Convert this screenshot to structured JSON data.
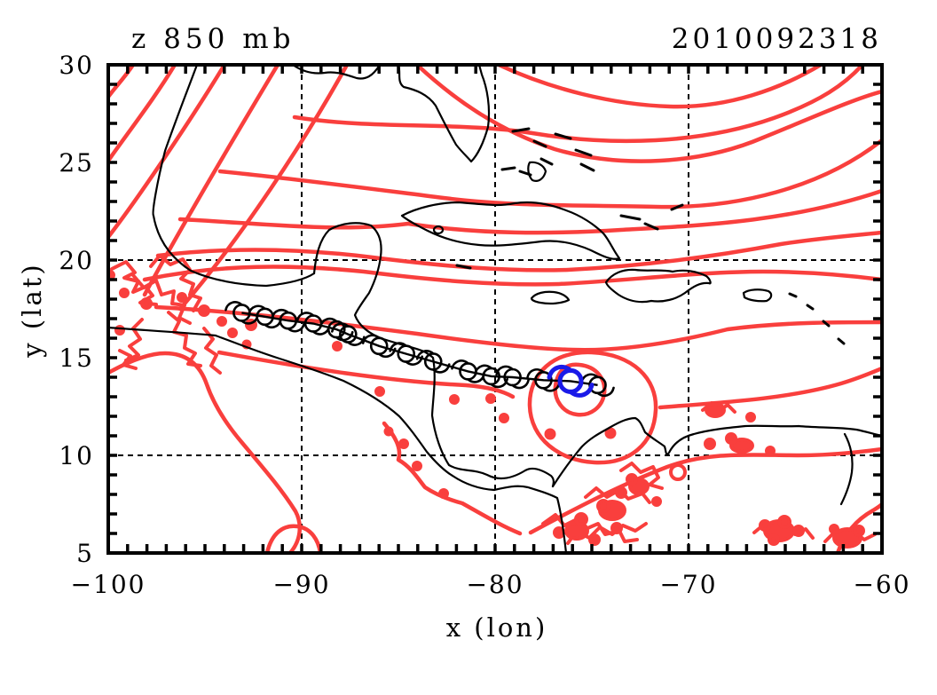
{
  "header": {
    "title": "z 850 mb",
    "timestamp": "2010092318"
  },
  "axes": {
    "x": {
      "label": "x (lon)",
      "min": -100,
      "max": -60,
      "major_ticks": [
        -100,
        -90,
        -80,
        -70,
        -60
      ],
      "minor_step": 1,
      "gridlines": [
        -90,
        -80,
        -70
      ]
    },
    "y": {
      "label": "y (lat)",
      "min": 5,
      "max": 30,
      "major_ticks": [
        30,
        25,
        20,
        15,
        10,
        5
      ],
      "minor_step": 1,
      "gridlines": [
        10,
        20
      ]
    }
  },
  "colors": {
    "contour_red": "#f93f3d",
    "storm_blue": "#1a1ae8",
    "coastline_black": "#000000",
    "background": "#ffffff"
  },
  "chart_data": {
    "type": "contour_map",
    "title": "z 850 mb",
    "timestamp": "2010092318",
    "field": "850 mb geopotential height contours (unlabeled) over Gulf of Mexico / Caribbean coastline basemap",
    "xlabel": "x (lon)",
    "ylabel": "y (lat)",
    "xlim": [
      -100,
      -60
    ],
    "ylim": [
      5,
      30
    ],
    "grid": "dashed graticule at lon -90,-80,-70 and lat 10,20",
    "contour_pattern": "tight NW-SE gradient over Gulf of Mexico, contours flattening eastward and rising toward NE corner; closed double low center around storm at (-76,13.8); terrain noise contours over Mexican/Guatemalan and Colombian/Venezuelan highlands",
    "storm_track": {
      "symbol": "tropical-storm-icon",
      "current": {
        "lon": -76.1,
        "lat": 13.8
      },
      "positions": [
        {
          "lon": -93.1,
          "lat": 17.3
        },
        {
          "lon": -91.9,
          "lat": 17.1
        },
        {
          "lon": -90.7,
          "lat": 16.9
        },
        {
          "lon": -89.4,
          "lat": 16.75
        },
        {
          "lon": -88.2,
          "lat": 16.45
        },
        {
          "lon": -87.6,
          "lat": 16.2
        },
        {
          "lon": -86.0,
          "lat": 15.6
        },
        {
          "lon": -84.6,
          "lat": 15.2
        },
        {
          "lon": -83.2,
          "lat": 14.8
        },
        {
          "lon": -81.4,
          "lat": 14.3
        },
        {
          "lon": -80.2,
          "lat": 14.05
        },
        {
          "lon": -79.1,
          "lat": 14.0
        },
        {
          "lon": -77.5,
          "lat": 13.85
        },
        {
          "lon": -74.7,
          "lat": 13.6
        }
      ]
    }
  }
}
